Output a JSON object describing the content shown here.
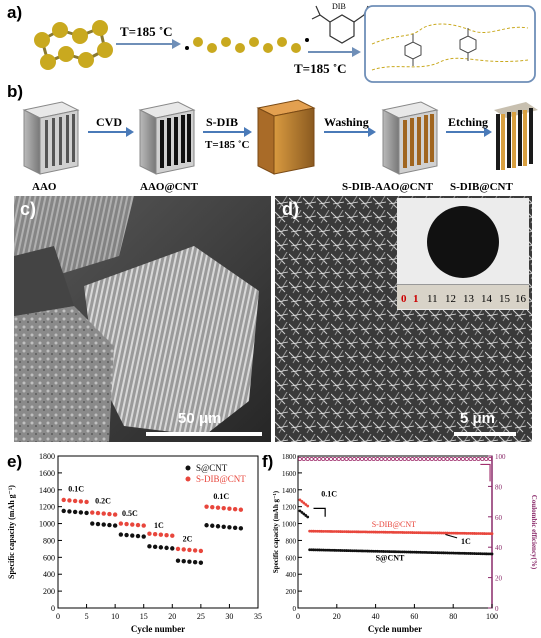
{
  "panel_a": {
    "label": "a)",
    "step1": "T=185 ˚C",
    "reagent": "DIB",
    "step2": "T=185 ˚C"
  },
  "panel_b": {
    "label": "b)",
    "steps": [
      "CVD",
      "S-DIB",
      "Washing",
      "Etching"
    ],
    "step_temp": "T=185 ˚C",
    "captions": [
      "AAO",
      "AAO@CNT",
      "S-DIB-AAO@CNT",
      "S-DIB@CNT"
    ]
  },
  "panel_c": {
    "label": "c)",
    "scale": "50 μm"
  },
  "panel_d": {
    "label": "d)",
    "scale": "5 μm",
    "ruler_ticks": [
      "0",
      "1",
      "11",
      "12",
      "13",
      "14",
      "15",
      "16"
    ]
  },
  "panel_e": {
    "label": "e)"
  },
  "panel_f": {
    "label": "f)"
  },
  "chart_data": [
    {
      "type": "scatter",
      "xlabel": "Cycle number",
      "ylabel": "Specific capacity (mAh g⁻¹)",
      "xlim": [
        0,
        35
      ],
      "ylim": [
        0,
        1800
      ],
      "xticks": [
        0,
        5,
        10,
        15,
        20,
        25,
        30,
        35
      ],
      "yticks": [
        0,
        200,
        400,
        600,
        800,
        1000,
        1200,
        1400,
        1600,
        1800
      ],
      "legend_position": "top-right",
      "series": [
        {
          "name": "S@CNT",
          "color": "#111111",
          "rates": [
            [
              1,
              5,
              1150
            ],
            [
              6,
              10,
              1000
            ],
            [
              11,
              15,
              870
            ],
            [
              16,
              20,
              730
            ],
            [
              21,
              25,
              560
            ],
            [
              26,
              32,
              980
            ]
          ]
        },
        {
          "name": "S-DIB@CNT",
          "color": "#e8463c",
          "rates": [
            [
              1,
              5,
              1280
            ],
            [
              6,
              10,
              1130
            ],
            [
              11,
              15,
              1000
            ],
            [
              16,
              20,
              880
            ],
            [
              21,
              25,
              700
            ],
            [
              26,
              32,
              1200
            ]
          ]
        }
      ],
      "annotations": [
        {
          "text": "0.1C",
          "x": 1.8,
          "y": 1380
        },
        {
          "text": "0.2C",
          "x": 6.5,
          "y": 1240
        },
        {
          "text": "0.5C",
          "x": 11.2,
          "y": 1090
        },
        {
          "text": "1C",
          "x": 16.8,
          "y": 950
        },
        {
          "text": "2C",
          "x": 21.8,
          "y": 790
        },
        {
          "text": "0.1C",
          "x": 27.2,
          "y": 1290
        }
      ]
    },
    {
      "type": "scatter",
      "xlabel": "Cycle number",
      "ylabel": "Specific capacity (mAh g⁻¹)",
      "y2label": "Coulombic efficiency(%)",
      "xlim": [
        0,
        100
      ],
      "ylim": [
        0,
        1800
      ],
      "y2lim": [
        0,
        100
      ],
      "xticks": [
        0,
        20,
        40,
        60,
        80,
        100
      ],
      "yticks": [
        0,
        200,
        400,
        600,
        800,
        1000,
        1200,
        1400,
        1600,
        1800
      ],
      "y2ticks": [
        0,
        20,
        40,
        60,
        80,
        100
      ],
      "series": [
        {
          "name": "S-DIB@CNT",
          "color": "#e8463c",
          "start": 1280,
          "plateau": 910,
          "end": 880
        },
        {
          "name": "S@CNT",
          "color": "#111111",
          "start": 1150,
          "plateau": 690,
          "end": 640
        },
        {
          "name": "Coulombic efficiency",
          "color": "#a0306e",
          "value": 98
        }
      ],
      "annotations": [
        {
          "text": "0.1C"
        },
        {
          "text": "S-DIB@CNT"
        },
        {
          "text": "1C"
        },
        {
          "text": "S@CNT"
        }
      ]
    }
  ]
}
